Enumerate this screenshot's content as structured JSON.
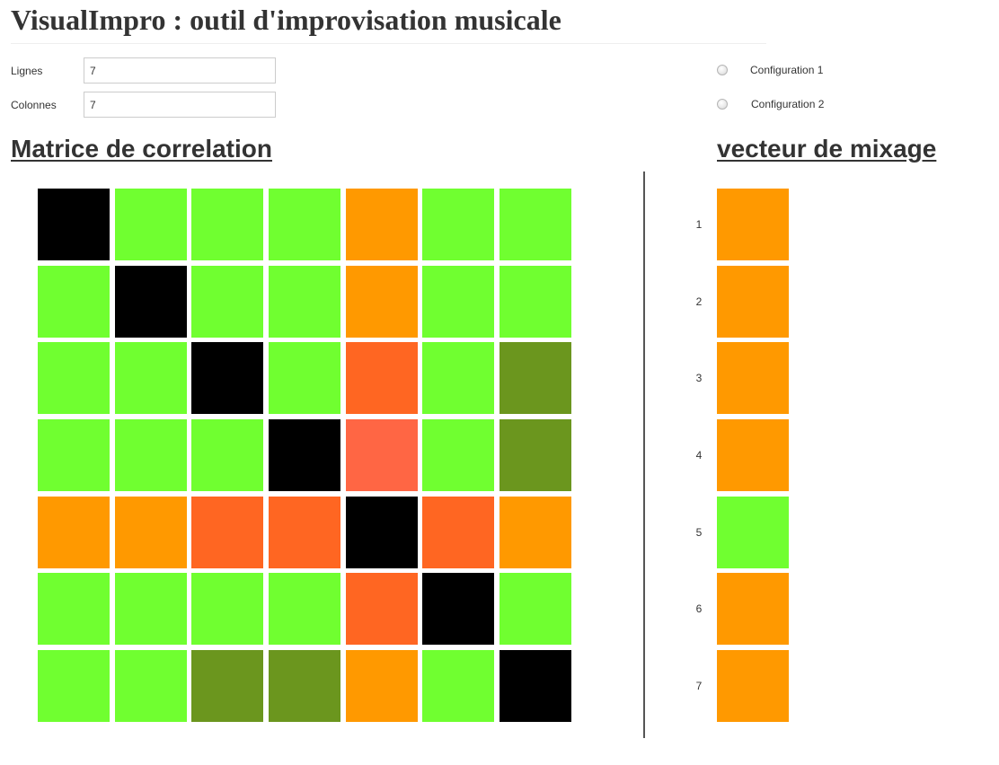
{
  "page_title": "VisualImpro : outil d'improvisation musicale",
  "form": {
    "rows_label": "Lignes",
    "rows_value": "7",
    "cols_label": "Colonnes",
    "cols_value": "7"
  },
  "configs": [
    {
      "label": "Configuration 1",
      "checked": false
    },
    {
      "label": "Configuration 2",
      "checked": false
    }
  ],
  "matrix": {
    "heading": "Matrice de correlation",
    "colors": [
      [
        "#000000",
        "#70FF30",
        "#70FF30",
        "#70FF30",
        "#FF9900",
        "#70FF30",
        "#70FF30"
      ],
      [
        "#70FF30",
        "#000000",
        "#70FF30",
        "#70FF30",
        "#FF9900",
        "#70FF30",
        "#70FF30"
      ],
      [
        "#70FF30",
        "#70FF30",
        "#000000",
        "#70FF30",
        "#FF6622",
        "#70FF30",
        "#6B961E"
      ],
      [
        "#70FF30",
        "#70FF30",
        "#70FF30",
        "#000000",
        "#FF6644",
        "#70FF30",
        "#6B961E"
      ],
      [
        "#FF9900",
        "#FF9900",
        "#FF6622",
        "#FF6622",
        "#000000",
        "#FF6622",
        "#FF9900"
      ],
      [
        "#70FF30",
        "#70FF30",
        "#70FF30",
        "#70FF30",
        "#FF6622",
        "#000000",
        "#70FF30"
      ],
      [
        "#70FF30",
        "#70FF30",
        "#6B961E",
        "#6B961E",
        "#FF9900",
        "#70FF30",
        "#000000"
      ]
    ]
  },
  "mix_vector": {
    "heading": "vecteur de mixage",
    "items": [
      {
        "index": "1",
        "color": "#FF9900"
      },
      {
        "index": "2",
        "color": "#FF9900"
      },
      {
        "index": "3",
        "color": "#FF9900"
      },
      {
        "index": "4",
        "color": "#FF9900"
      },
      {
        "index": "5",
        "color": "#70FF30"
      },
      {
        "index": "6",
        "color": "#FF9900"
      },
      {
        "index": "7",
        "color": "#FF9900"
      }
    ]
  }
}
